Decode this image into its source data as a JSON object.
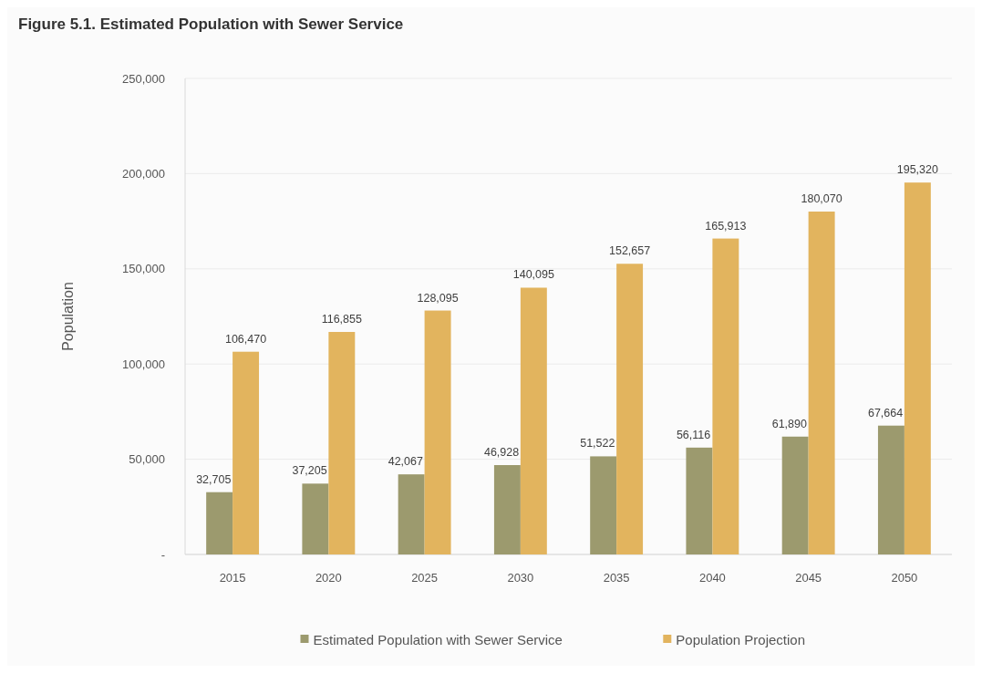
{
  "chart_data": {
    "type": "bar",
    "title": "Figure 5.1. Estimated Population with Sewer Service",
    "ylabel": "Population",
    "categories": [
      "2015",
      "2020",
      "2025",
      "2030",
      "2035",
      "2040",
      "2045",
      "2050"
    ],
    "series": [
      {
        "name": "Estimated Population with Sewer Service",
        "color": "#9c9a6e",
        "values": [
          32705,
          37205,
          42067,
          46928,
          51522,
          56116,
          61890,
          67664
        ],
        "value_labels": [
          "32,705",
          "37,205",
          "42,067",
          "46,928",
          "51,522",
          "56,116",
          "61,890",
          "67,664"
        ]
      },
      {
        "name": "Population Projection",
        "color": "#e2b45e",
        "values": [
          106470,
          116855,
          128095,
          140095,
          152657,
          165913,
          180070,
          195320
        ],
        "value_labels": [
          "106,470",
          "116,855",
          "128,095",
          "140,095",
          "152,657",
          "165,913",
          "180,070",
          "195,320"
        ]
      }
    ],
    "ylim": [
      0,
      250000
    ],
    "yticks": [
      {
        "value": 0,
        "label": "-"
      },
      {
        "value": 50000,
        "label": "50,000"
      },
      {
        "value": 100000,
        "label": "100,000"
      },
      {
        "value": 150000,
        "label": "150,000"
      },
      {
        "value": 200000,
        "label": "200,000"
      },
      {
        "value": 250000,
        "label": "250,000"
      }
    ],
    "grid": "y",
    "legend": "bottom"
  }
}
